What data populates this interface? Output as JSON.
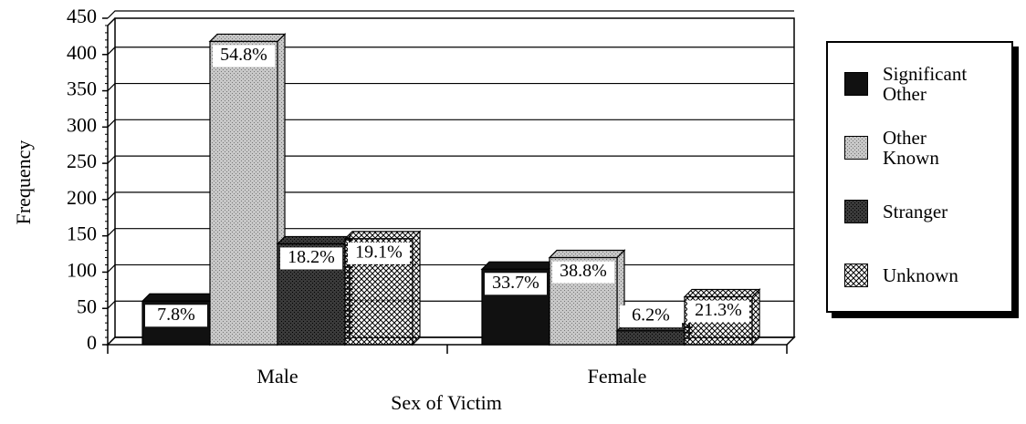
{
  "chart_data": {
    "type": "bar3d",
    "x_label": "Sex of Victim",
    "y_label": "Frequency",
    "categories": [
      "Male",
      "Female"
    ],
    "series": [
      {
        "name": "Significant Other",
        "color": "#111111",
        "pattern": "solid",
        "values": [
          60,
          104
        ],
        "percent_labels": [
          "7.8%",
          "33.7%"
        ]
      },
      {
        "name": "Other Known",
        "color": "#c8c8c8",
        "pattern": "dots",
        "values": [
          418,
          120
        ],
        "percent_labels": [
          "54.8%",
          "38.8%"
        ]
      },
      {
        "name": "Stranger",
        "color": "#3a3a3a",
        "pattern": "dots",
        "values": [
          139,
          19
        ],
        "percent_labels": [
          "18.2%",
          "6.2%"
        ]
      },
      {
        "name": "Unknown",
        "color": "#ffffff",
        "pattern": "crosshatch",
        "values": [
          146,
          66
        ],
        "percent_labels": [
          "19.1%",
          "21.3%"
        ]
      }
    ],
    "ylim": [
      0,
      450
    ],
    "yticks": [
      0,
      50,
      100,
      150,
      200,
      250,
      300,
      350,
      400,
      450
    ],
    "grid": true,
    "legend": "right"
  }
}
